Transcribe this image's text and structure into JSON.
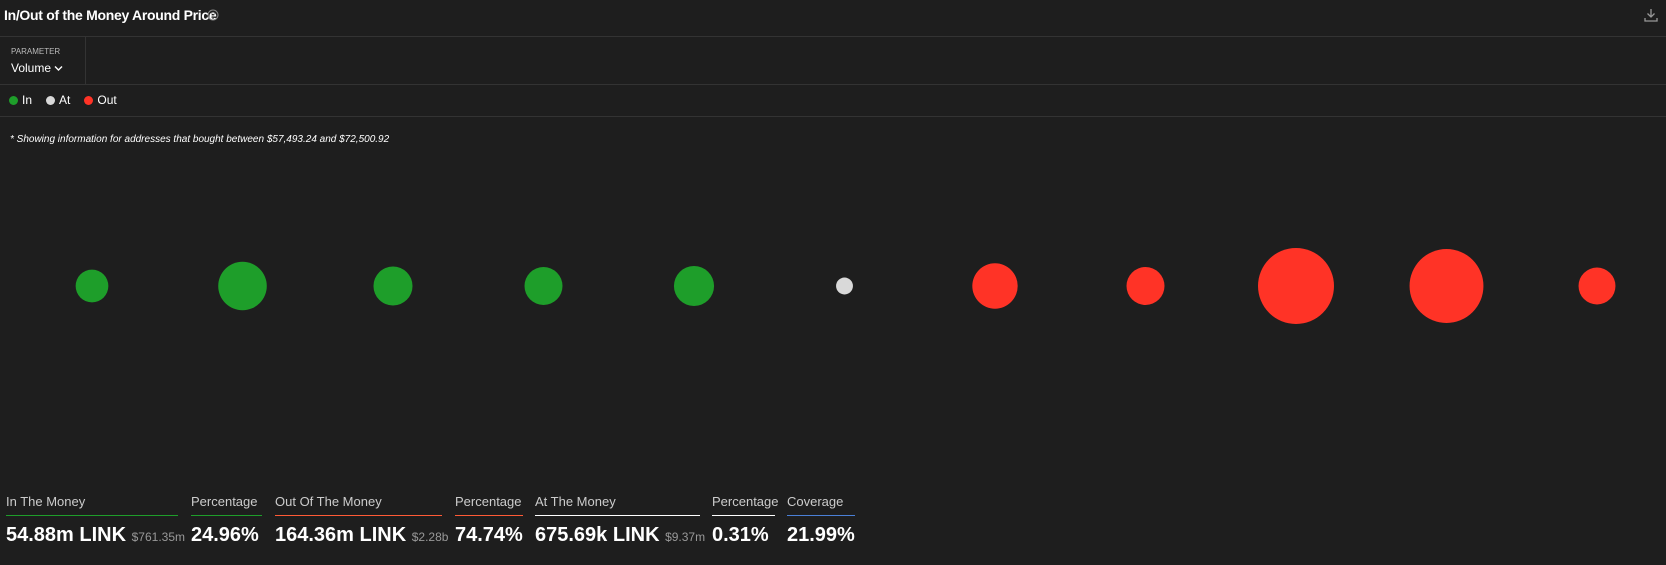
{
  "header": {
    "title": "In/Out of the Money Around Price"
  },
  "parameter": {
    "label": "PARAMETER",
    "value": "Volume"
  },
  "note": "* Showing information for addresses that bought between $57,493.24 and $72,500.92",
  "chart_data": {
    "type": "bubble",
    "series": [
      {
        "name": "In",
        "color": "#1e9e2a",
        "slots": [
          0,
          1,
          2,
          3,
          4
        ],
        "values": [
          240,
          529,
          342,
          324,
          361
        ]
      },
      {
        "name": "At",
        "color": "#d9d9d9",
        "slots": [
          5
        ],
        "values": [
          64
        ]
      },
      {
        "name": "Out",
        "color": "#ff3326",
        "slots": [
          6,
          7,
          8,
          9,
          10
        ],
        "values": [
          462,
          324,
          1296,
          1225,
          306
        ]
      }
    ]
  },
  "stats": [
    {
      "label": "In The Money",
      "value": "54.88m LINK",
      "sub": "$761.35m",
      "color": "#1e9e2a"
    },
    {
      "label": "Percentage",
      "value": "24.96%",
      "color": "#1e9e2a"
    },
    {
      "label": "Out Of The Money",
      "value": "164.36m LINK",
      "sub": "$2.28b",
      "color": "#ff5a36"
    },
    {
      "label": "Percentage",
      "value": "74.74%",
      "color": "#ff5a36"
    },
    {
      "label": "At The Money",
      "value": "675.69k LINK",
      "sub": "$9.37m",
      "color": "#ffffff"
    },
    {
      "label": "Percentage",
      "value": "0.31%",
      "color": "#ffffff"
    },
    {
      "label": "Coverage",
      "value": "21.99%",
      "color": "#4a7fd6"
    }
  ]
}
